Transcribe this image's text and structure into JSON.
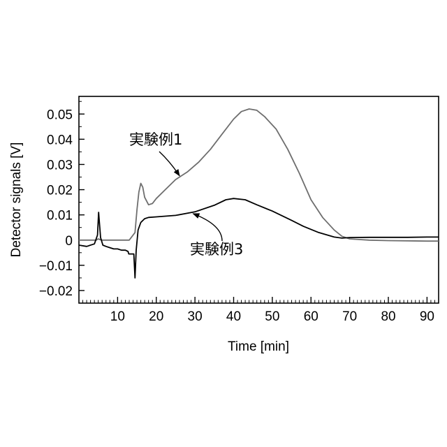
{
  "chart_data": {
    "type": "line",
    "title": "",
    "xlabel": "Time [min]",
    "ylabel": "Detector signals [V]",
    "xlim": [
      0,
      93
    ],
    "ylim": [
      -0.025,
      0.057
    ],
    "x_ticks": [
      10,
      20,
      30,
      40,
      50,
      60,
      70,
      80,
      90
    ],
    "y_ticks": [
      -0.02,
      -0.01,
      0,
      0.01,
      0.02,
      0.03,
      0.04,
      0.05
    ],
    "y_tick_labels": [
      "−0.02",
      "−0.01",
      "0",
      "0.01",
      "0.02",
      "0.03",
      "0.04",
      "0.05"
    ],
    "grid": false,
    "legend": "none",
    "series": [
      {
        "color": "#6e6e6e",
        "x": [
          0,
          4.5,
          5,
          5.4,
          6,
          10,
          13,
          14.5,
          15,
          15.5,
          16,
          16.5,
          17,
          18,
          19,
          20,
          22,
          25,
          28,
          31,
          34,
          37,
          40,
          42,
          44,
          46,
          48,
          51,
          54,
          57,
          60,
          63,
          66,
          68,
          70,
          75,
          80,
          85,
          90,
          93
        ],
        "y": [
          0,
          0,
          0.0005,
          0.0002,
          0,
          0,
          0,
          0.003,
          0.012,
          0.019,
          0.0225,
          0.021,
          0.017,
          0.014,
          0.0145,
          0.0165,
          0.0195,
          0.024,
          0.027,
          0.031,
          0.036,
          0.042,
          0.048,
          0.051,
          0.052,
          0.0515,
          0.049,
          0.044,
          0.036,
          0.0265,
          0.016,
          0.009,
          0.004,
          0.0015,
          0.0005,
          0,
          -0.0002,
          -0.0003,
          -0.0004,
          -0.0004
        ]
      },
      {
        "color": "#000000",
        "x": [
          0,
          2,
          4,
          4.8,
          5.1,
          5.3,
          5.6,
          6.2,
          7,
          8,
          9,
          10,
          11,
          12,
          12.7,
          12.9,
          13.2,
          13.6,
          14.2,
          14.5,
          14.8,
          15.3,
          16,
          17,
          18,
          20,
          25,
          30,
          35,
          38,
          40,
          43,
          46,
          50,
          55,
          58,
          62,
          66,
          68,
          70,
          75,
          80,
          85,
          90,
          93
        ],
        "y": [
          -0.002,
          -0.0025,
          -0.0015,
          0.002,
          0.011,
          0.007,
          0.001,
          -0.002,
          -0.0025,
          -0.003,
          -0.0035,
          -0.0035,
          -0.004,
          -0.004,
          -0.0045,
          -0.0055,
          -0.0055,
          -0.0055,
          -0.0055,
          -0.015,
          -0.004,
          0.004,
          0.007,
          0.0085,
          0.009,
          0.0092,
          0.0098,
          0.0112,
          0.0138,
          0.016,
          0.0165,
          0.016,
          0.014,
          0.0115,
          0.0078,
          0.0055,
          0.003,
          0.0012,
          0.0008,
          0.001,
          0.0011,
          0.0011,
          0.0011,
          0.0012,
          0.0012
        ]
      }
    ],
    "annotations": [
      {
        "text": "実験例1",
        "arrow_to": [
          26,
          0.0255
        ]
      },
      {
        "text": "実験例3",
        "arrow_to": [
          29.5,
          0.0105
        ]
      }
    ]
  }
}
